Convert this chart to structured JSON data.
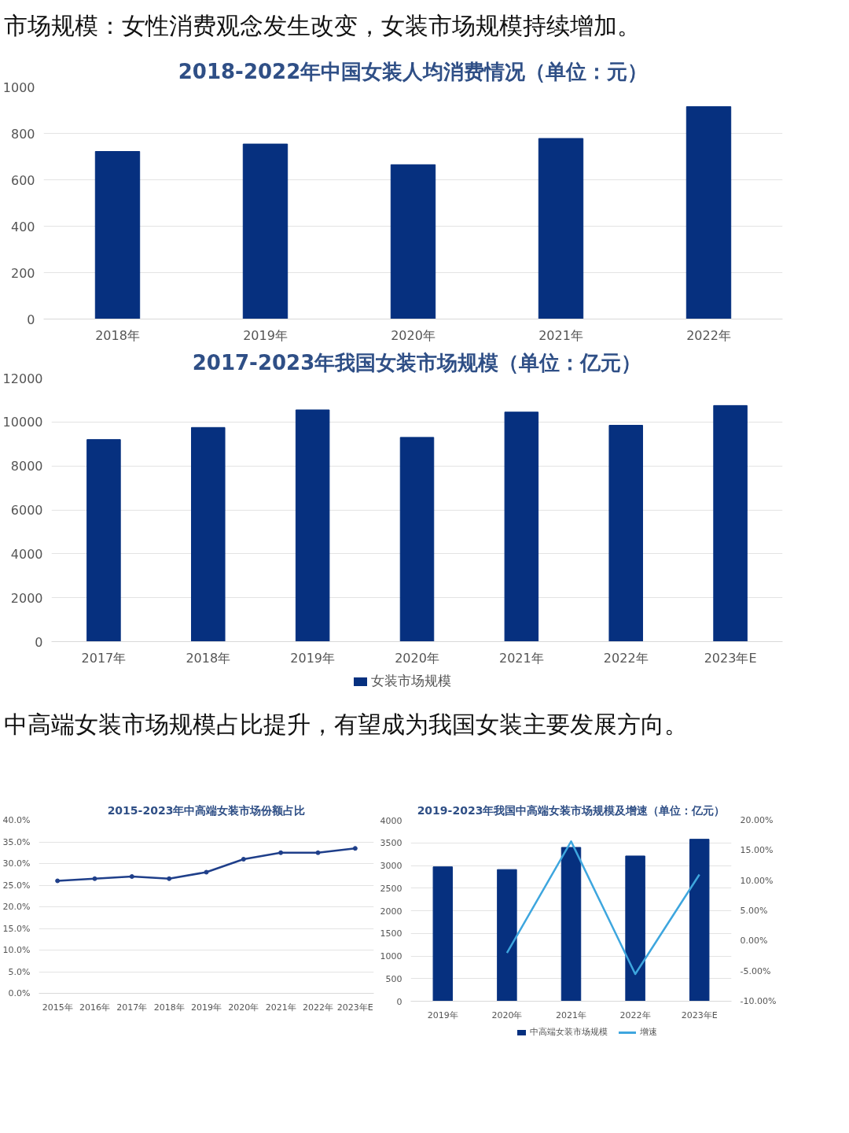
{
  "chart_data": [
    {
      "type": "bar",
      "title": "2018-2022年中国女装人均消费情况（单位：元）",
      "annotations": [
        "市场规模：女性消费观念发生改变，女装市场规模持续增加。"
      ],
      "categories": [
        "2018年",
        "2019年",
        "2020年",
        "2021年",
        "2022年"
      ],
      "series": [
        {
          "color": "#06307f",
          "values": [
            722,
            754,
            665,
            778,
            915
          ]
        }
      ],
      "ylim": [
        0,
        1000
      ],
      "yticks": [
        0,
        200,
        400,
        600,
        800,
        1000
      ],
      "grid": "y"
    },
    {
      "type": "bar",
      "title": "2017-2023年我国女装市场规模（单位：亿元）",
      "categories": [
        "2017年",
        "2018年",
        "2019年",
        "2020年",
        "2021年",
        "2022年",
        "2023年E"
      ],
      "series": [
        {
          "name": "女装市场规模",
          "color": "#06307f",
          "values": [
            9200,
            9750,
            10550,
            9300,
            10450,
            9850,
            10750
          ]
        }
      ],
      "ylim": [
        0,
        12000
      ],
      "yticks": [
        0,
        2000,
        4000,
        6000,
        8000,
        10000,
        12000
      ],
      "grid": "y",
      "legend": "bottom"
    },
    {
      "type": "line",
      "title": "2015-2023年中高端女装市场份额占比",
      "annotations": [
        "中高端女装市场规模占比提升，有望成为我国女装主要发展方向。"
      ],
      "categories": [
        "2015年",
        "2016年",
        "2017年",
        "2018年",
        "2019年",
        "2020年",
        "2021年",
        "2022年",
        "2023年E"
      ],
      "series": [
        {
          "color": "#1f3f8a",
          "values": [
            26,
            26.5,
            27,
            26.5,
            28,
            31,
            32.5,
            32.5,
            33.5
          ]
        }
      ],
      "ylim": [
        0,
        40
      ],
      "yticks": [
        {
          "value": 0,
          "label": "0.0%"
        },
        {
          "value": 5,
          "label": "5.0%"
        },
        {
          "value": 10,
          "label": "10.0%"
        },
        {
          "value": 15,
          "label": "15.0%"
        },
        {
          "value": 20,
          "label": "20.0%"
        },
        {
          "value": 25,
          "label": "25.0%"
        },
        {
          "value": 30,
          "label": "30.0%"
        },
        {
          "value": 35,
          "label": "35.0%"
        },
        {
          "value": 40,
          "label": "40.0%"
        }
      ],
      "grid": "y",
      "marker": "circle"
    },
    {
      "type": "bar",
      "title": "2019-2023年我国中高端女装市场规模及增速（单位：亿元）",
      "categories": [
        "2019年",
        "2020年",
        "2021年",
        "2022年",
        "2023年E"
      ],
      "series": [
        {
          "name": "中高端女装市场规模",
          "color": "#06307f",
          "values": [
            2970,
            2910,
            3400,
            3210,
            3580
          ]
        },
        {
          "name": "增速",
          "type": "line",
          "axis": "y2",
          "color": "#3ea6de",
          "values": [
            null,
            -2,
            16.5,
            -5.5,
            11
          ]
        }
      ],
      "ylim": [
        0,
        4000
      ],
      "yticks": [
        0,
        500,
        1000,
        1500,
        2000,
        2500,
        3000,
        3500,
        4000
      ],
      "y2lim": [
        -10,
        20
      ],
      "y2ticks": [
        {
          "value": -10,
          "label": "-10.00%"
        },
        {
          "value": -5,
          "label": "-5.00%"
        },
        {
          "value": 0,
          "label": "0.00%"
        },
        {
          "value": 5,
          "label": "5.00%"
        },
        {
          "value": 10,
          "label": "10.00%"
        },
        {
          "value": 15,
          "label": "15.00%"
        },
        {
          "value": 20,
          "label": "20.00%"
        }
      ],
      "grid": "y",
      "legend": "bottom"
    }
  ]
}
